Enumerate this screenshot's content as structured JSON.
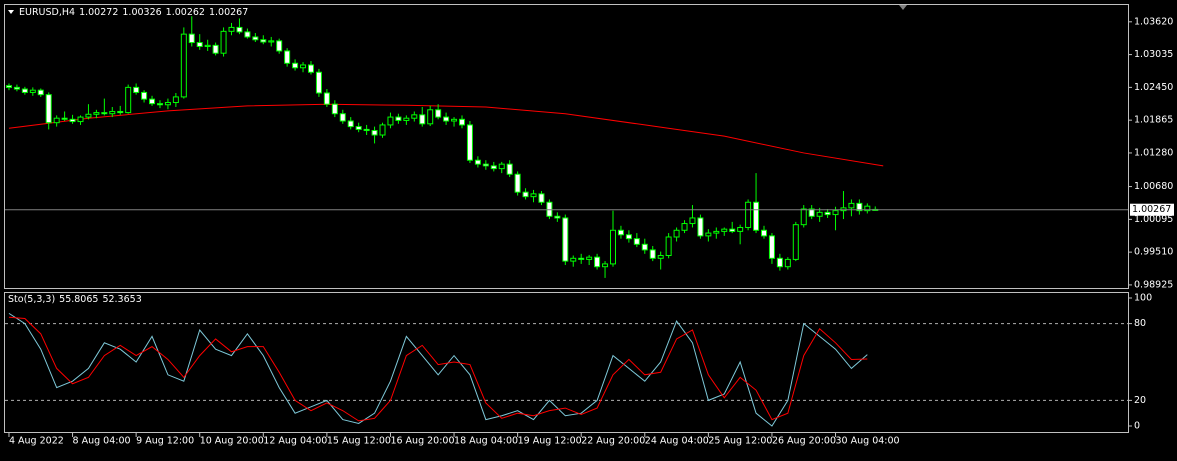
{
  "chart_data": [
    {
      "type": "candlestick",
      "title": "EURUSD,H4",
      "up_color": "#000000",
      "down_color": "#ffffff",
      "line_color": "#00ff00",
      "price_line_color": "#808080",
      "xlim": [
        -0.5,
        140.8
      ],
      "ylim": [
        0.9887,
        1.0392
      ],
      "yticks": [
        {
          "value": 1.0362,
          "label": "1.03620"
        },
        1.03035,
        {
          "value": 1.0245,
          "label": "1.02450"
        },
        1.01865,
        {
          "value": 1.0128,
          "label": "1.01280"
        },
        {
          "value": 1.0068,
          "label": "1.00680"
        },
        1.00095,
        {
          "value": 0.9951,
          "label": "0.99510"
        },
        0.98925
      ],
      "xticks": [
        {
          "value": 0,
          "label": "4 Aug 2022"
        },
        {
          "value": 8,
          "label": "8 Aug 04:00"
        },
        {
          "value": 16,
          "label": "9 Aug 12:00"
        },
        {
          "value": 24,
          "label": "10 Aug 20:00"
        },
        {
          "value": 32,
          "label": "12 Aug 04:00"
        },
        {
          "value": 40,
          "label": "15 Aug 12:00"
        },
        {
          "value": 48,
          "label": "16 Aug 20:00"
        },
        {
          "value": 56,
          "label": "18 Aug 04:00"
        },
        {
          "value": 64,
          "label": "19 Aug 12:00"
        },
        {
          "value": 72,
          "label": "22 Aug 20:00"
        },
        {
          "value": 80,
          "label": "24 Aug 04:00"
        },
        {
          "value": 88,
          "label": "25 Aug 12:00"
        },
        {
          "value": 96,
          "label": "26 Aug 20:00"
        },
        {
          "value": 104,
          "label": "30 Aug 04:00"
        }
      ],
      "ohlc": [
        [
          1.0248,
          1.0252,
          1.024,
          1.0245
        ],
        [
          1.0245,
          1.025,
          1.0238,
          1.0242
        ],
        [
          1.0242,
          1.0246,
          1.0232,
          1.0236
        ],
        [
          1.0236,
          1.0245,
          1.023,
          1.024
        ],
        [
          1.024,
          1.0243,
          1.0228,
          1.0232
        ],
        [
          1.0232,
          1.0236,
          1.017,
          1.0182
        ],
        [
          1.0182,
          1.0195,
          1.0175,
          1.019
        ],
        [
          1.019,
          1.0202,
          1.0185,
          1.0188
        ],
        [
          1.0188,
          1.0196,
          1.018,
          1.0184
        ],
        [
          1.0184,
          1.0195,
          1.0178,
          1.0192
        ],
        [
          1.0192,
          1.0215,
          1.0188,
          1.0197
        ],
        [
          1.0197,
          1.0205,
          1.019,
          1.02
        ],
        [
          1.02,
          1.0225,
          1.0195,
          1.0198
        ],
        [
          1.0198,
          1.021,
          1.0192,
          1.0202
        ],
        [
          1.0202,
          1.0212,
          1.0196,
          1.02
        ],
        [
          1.02,
          1.025,
          1.0198,
          1.0245
        ],
        [
          1.0245,
          1.0252,
          1.0232,
          1.0236
        ],
        [
          1.0236,
          1.024,
          1.0218,
          1.0224
        ],
        [
          1.0224,
          1.023,
          1.0212,
          1.0216
        ],
        [
          1.0216,
          1.0222,
          1.0208,
          1.0214
        ],
        [
          1.0214,
          1.0225,
          1.0206,
          1.0218
        ],
        [
          1.0218,
          1.0235,
          1.021,
          1.0228
        ],
        [
          1.0228,
          1.0352,
          1.0225,
          1.034
        ],
        [
          1.034,
          1.0372,
          1.0318,
          1.0325
        ],
        [
          1.0325,
          1.034,
          1.0312,
          1.0318
        ],
        [
          1.0318,
          1.033,
          1.031,
          1.032
        ],
        [
          1.032,
          1.0325,
          1.0302,
          1.0306
        ],
        [
          1.0306,
          1.0352,
          1.03,
          1.0345
        ],
        [
          1.0345,
          1.036,
          1.0338,
          1.0352
        ],
        [
          1.0352,
          1.0368,
          1.034,
          1.0344
        ],
        [
          1.0344,
          1.035,
          1.0332,
          1.0335
        ],
        [
          1.0335,
          1.0342,
          1.0326,
          1.033
        ],
        [
          1.033,
          1.0338,
          1.0322,
          1.0326
        ],
        [
          1.0326,
          1.0335,
          1.0318,
          1.0328
        ],
        [
          1.0328,
          1.0332,
          1.0305,
          1.031
        ],
        [
          1.031,
          1.0315,
          1.0282,
          1.0288
        ],
        [
          1.0288,
          1.0295,
          1.0275,
          1.028
        ],
        [
          1.028,
          1.029,
          1.0272,
          1.0285
        ],
        [
          1.0285,
          1.0292,
          1.0268,
          1.0272
        ],
        [
          1.0272,
          1.0278,
          1.0228,
          1.0235
        ],
        [
          1.0235,
          1.0242,
          1.021,
          1.0215
        ],
        [
          1.0215,
          1.0222,
          1.0192,
          1.0198
        ],
        [
          1.0198,
          1.0205,
          1.018,
          1.0185
        ],
        [
          1.0185,
          1.0192,
          1.017,
          1.0175
        ],
        [
          1.0175,
          1.0182,
          1.0165,
          1.017
        ],
        [
          1.017,
          1.0178,
          1.016,
          1.0168
        ],
        [
          1.0168,
          1.0175,
          1.0145,
          1.016
        ],
        [
          1.016,
          1.0182,
          1.0155,
          1.0178
        ],
        [
          1.0178,
          1.02,
          1.0172,
          1.0192
        ],
        [
          1.0192,
          1.0198,
          1.018,
          1.0186
        ],
        [
          1.0186,
          1.0195,
          1.0178,
          1.019
        ],
        [
          1.019,
          1.0202,
          1.0184,
          1.0196
        ],
        [
          1.0196,
          1.021,
          1.0175,
          1.018
        ],
        [
          1.018,
          1.0212,
          1.0176,
          1.0205
        ],
        [
          1.0205,
          1.0215,
          1.0188,
          1.0192
        ],
        [
          1.0192,
          1.02,
          1.0178,
          1.0185
        ],
        [
          1.0185,
          1.0192,
          1.0175,
          1.0188
        ],
        [
          1.0188,
          1.0195,
          1.0172,
          1.0178
        ],
        [
          1.0178,
          1.0185,
          1.011,
          1.0115
        ],
        [
          1.0115,
          1.0122,
          1.0102,
          1.0108
        ],
        [
          1.0108,
          1.0115,
          1.0098,
          1.0105
        ],
        [
          1.0105,
          1.0112,
          1.0095,
          1.01
        ],
        [
          1.01,
          1.0112,
          1.0092,
          1.0108
        ],
        [
          1.0108,
          1.0115,
          1.0085,
          1.009
        ],
        [
          1.009,
          1.0095,
          1.0052,
          1.0058
        ],
        [
          1.0058,
          1.0065,
          1.0045,
          1.005
        ],
        [
          1.005,
          1.0062,
          1.004,
          1.0055
        ],
        [
          1.0055,
          1.006,
          1.0035,
          1.004
        ],
        [
          1.004,
          1.0045,
          1.001,
          1.0015
        ],
        [
          1.0015,
          1.0022,
          1.0005,
          1.0012
        ],
        [
          1.0012,
          1.0018,
          0.9928,
          0.9935
        ],
        [
          0.9935,
          0.9945,
          0.9925,
          0.994
        ],
        [
          0.994,
          0.9948,
          0.993,
          0.9938
        ],
        [
          0.9938,
          0.9946,
          0.9928,
          0.9942
        ],
        [
          0.9942,
          0.9948,
          0.992,
          0.9925
        ],
        [
          0.9925,
          0.9935,
          0.9905,
          0.993
        ],
        [
          0.993,
          1.0025,
          0.9925,
          0.999
        ],
        [
          0.999,
          0.9998,
          0.9975,
          0.9982
        ],
        [
          0.9982,
          0.999,
          0.9968,
          0.9975
        ],
        [
          0.9975,
          0.9985,
          0.996,
          0.9965
        ],
        [
          0.9965,
          0.9975,
          0.9948,
          0.9955
        ],
        [
          0.9955,
          0.9962,
          0.9935,
          0.994
        ],
        [
          0.994,
          0.9952,
          0.992,
          0.9945
        ],
        [
          0.9945,
          0.9985,
          0.994,
          0.9978
        ],
        [
          0.9978,
          0.9995,
          0.997,
          0.999
        ],
        [
          0.999,
          1.0008,
          0.9985,
          1.0002
        ],
        [
          1.0002,
          1.0035,
          0.9995,
          1.0012
        ],
        [
          1.0012,
          1.0018,
          0.9975,
          0.998
        ],
        [
          0.998,
          0.9992,
          0.997,
          0.9985
        ],
        [
          0.9985,
          0.9995,
          0.9975,
          0.9988
        ],
        [
          0.9988,
          0.9995,
          0.998,
          0.9992
        ],
        [
          0.9992,
          1.0005,
          0.9985,
          0.9988
        ],
        [
          0.9988,
          1.0,
          0.9965,
          0.9995
        ],
        [
          0.9995,
          1.0045,
          0.999,
          1.004
        ],
        [
          1.004,
          1.0092,
          0.9985,
          0.999
        ],
        [
          0.999,
          0.9998,
          0.9975,
          0.998
        ],
        [
          0.998,
          0.9985,
          0.993,
          0.994
        ],
        [
          0.994,
          0.9948,
          0.9918,
          0.9925
        ],
        [
          0.9925,
          0.9942,
          0.992,
          0.9938
        ],
        [
          0.9938,
          1.0005,
          0.9935,
          1.0
        ],
        [
          1.0,
          1.0035,
          0.9995,
          1.0028
        ],
        [
          1.0028,
          1.0035,
          1.001,
          1.0015
        ],
        [
          1.0015,
          1.003,
          1.0005,
          1.0022
        ],
        [
          1.0022,
          1.0028,
          1.0012,
          1.0018
        ],
        [
          1.0018,
          1.0032,
          0.999,
          1.0025
        ],
        [
          1.0025,
          1.006,
          1.001,
          1.003
        ],
        [
          1.003,
          1.0045,
          1.0015,
          1.0038
        ],
        [
          1.0038,
          1.0045,
          1.0018,
          1.0025
        ],
        [
          1.0025,
          1.0038,
          1.002,
          1.0033
        ],
        [
          1.00272,
          1.00326,
          1.00262,
          1.00267
        ]
      ],
      "ma": {
        "color": "#ff0000",
        "x": [
          0,
          10,
          20,
          30,
          40,
          50,
          60,
          70,
          80,
          90,
          100,
          110
        ],
        "values": [
          1.0172,
          1.019,
          1.0203,
          1.0212,
          1.0215,
          1.0213,
          1.021,
          1.0198,
          1.0178,
          1.0158,
          1.0128,
          1.0105
        ]
      }
    },
    {
      "type": "line",
      "title": "Sto(5,3,3)",
      "xlim": [
        -0.5,
        140.8
      ],
      "ylim": [
        0,
        100
      ],
      "yticks": [
        100,
        80,
        20,
        0
      ],
      "grid": "dashed",
      "x": [
        0,
        2,
        4,
        6,
        8,
        10,
        12,
        14,
        16,
        18,
        20,
        22,
        24,
        26,
        28,
        30,
        32,
        34,
        36,
        38,
        40,
        42,
        44,
        46,
        48,
        50,
        52,
        54,
        56,
        58,
        60,
        62,
        64,
        66,
        68,
        70,
        72,
        74,
        76,
        78,
        80,
        82,
        84,
        86,
        88,
        90,
        92,
        94,
        96,
        98,
        100,
        102,
        104,
        106,
        108
      ],
      "series": [
        {
          "color": "#7ec8d8",
          "values": [
            88,
            80,
            60,
            30,
            35,
            45,
            65,
            60,
            50,
            70,
            40,
            35,
            75,
            60,
            55,
            72,
            55,
            30,
            10,
            15,
            20,
            5,
            2,
            10,
            35,
            70,
            55,
            40,
            55,
            40,
            5,
            8,
            12,
            5,
            20,
            8,
            10,
            20,
            55,
            45,
            35,
            50,
            82,
            65,
            20,
            25,
            50,
            10,
            0,
            20,
            80,
            70,
            60,
            45,
            55.8065
          ]
        },
        {
          "color": "#ff0000",
          "values": [
            85,
            84,
            72,
            45,
            33,
            38,
            55,
            63,
            55,
            62,
            52,
            38,
            55,
            68,
            58,
            62,
            62,
            42,
            20,
            12,
            18,
            12,
            4,
            6,
            20,
            55,
            63,
            48,
            50,
            48,
            18,
            6,
            10,
            8,
            12,
            14,
            9,
            14,
            40,
            52,
            40,
            42,
            68,
            75,
            40,
            22,
            38,
            28,
            5,
            10,
            55,
            76,
            65,
            52,
            52.3653
          ]
        }
      ]
    }
  ]
}
